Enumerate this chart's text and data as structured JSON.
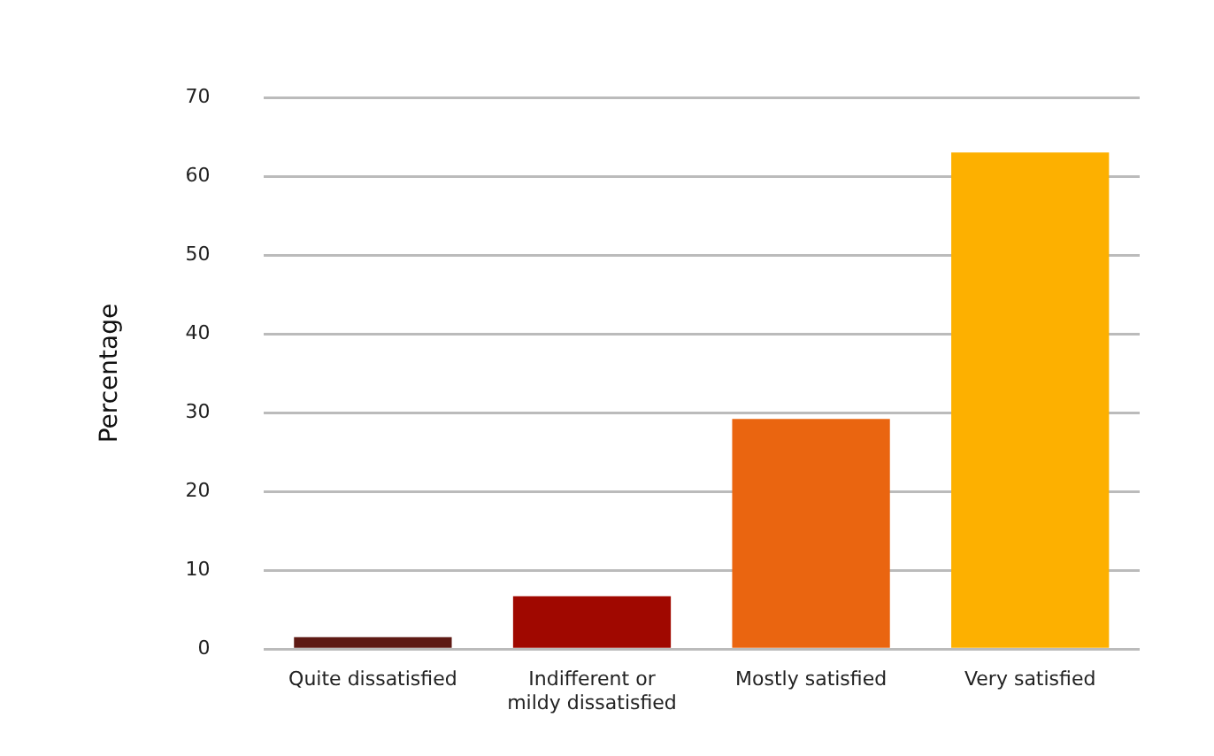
{
  "chart_data": {
    "type": "bar",
    "ylabel": "Percentage",
    "categories": [
      "Quite dissatisfied",
      "Indifferent or\nmildy dissatisfied",
      "Mostly satisfied",
      "Very satisfied"
    ],
    "values": [
      1.5,
      6.7,
      29.2,
      63
    ],
    "colors": [
      "#5e1a14",
      "#a00800",
      "#ea6510",
      "#fdb000"
    ],
    "ylim": [
      0,
      70
    ],
    "yticks": [
      0,
      10,
      20,
      30,
      40,
      50,
      60,
      70
    ],
    "grid": "y"
  }
}
